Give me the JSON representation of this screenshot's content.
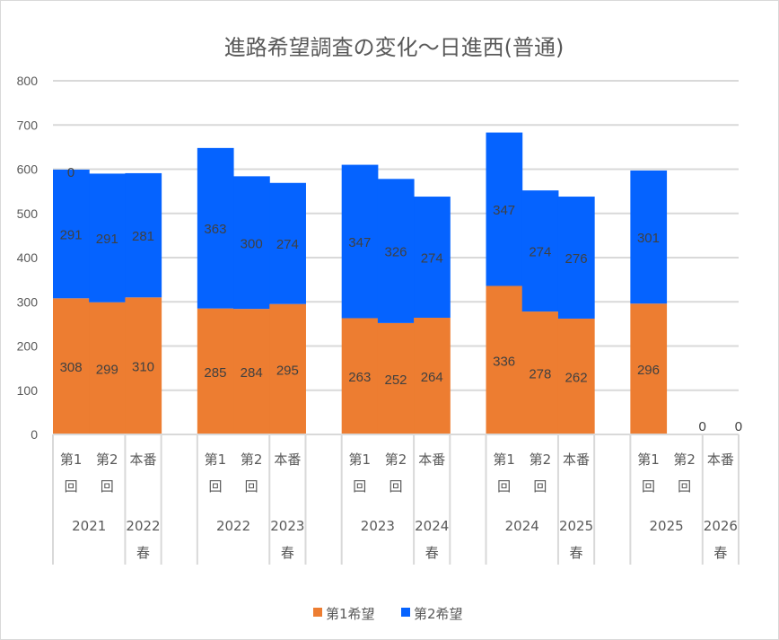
{
  "chart_data": {
    "type": "bar",
    "stacked": true,
    "title": "進路希望調査の変化～日進西(普通)",
    "xlabel": "",
    "ylabel": "",
    "ylim": [
      0,
      800
    ],
    "yticks": [
      "0",
      "100",
      "200",
      "300",
      "400",
      "500",
      "600",
      "700",
      "800"
    ],
    "grid": true,
    "legend_position": "bottom",
    "groups": [
      {
        "sub": [
          "第1\n回",
          "第2\n回",
          "本番"
        ],
        "years": [
          "2021",
          "2022\n春"
        ]
      },
      {
        "sub": [
          "第1\n回",
          "第2\n回",
          "本番"
        ],
        "years": [
          "2022",
          "2023\n春"
        ]
      },
      {
        "sub": [
          "第1\n回",
          "第2\n回",
          "本番"
        ],
        "years": [
          "2023",
          "2024\n春"
        ]
      },
      {
        "sub": [
          "第1\n回",
          "第2\n回",
          "本番"
        ],
        "years": [
          "2024",
          "2025\n春"
        ]
      },
      {
        "sub": [
          "第1\n回",
          "第2\n回",
          "本番"
        ],
        "years": [
          "2025",
          "2026\n春"
        ]
      }
    ],
    "series": [
      {
        "name": "第1希望",
        "color": "#ED7D31",
        "values": [
          308,
          299,
          310,
          285,
          284,
          295,
          263,
          252,
          264,
          336,
          278,
          262,
          296,
          0,
          0
        ],
        "labels": [
          "308",
          "299",
          "310",
          "285",
          "284",
          "295",
          "263",
          "252",
          "264",
          "336",
          "278",
          "262",
          "296",
          "0",
          "0"
        ]
      },
      {
        "name": "第2希望",
        "color": "#0563FF",
        "values": [
          291,
          291,
          281,
          363,
          300,
          274,
          347,
          326,
          274,
          347,
          274,
          276,
          301,
          0,
          0
        ],
        "labels": [
          "291",
          "291",
          "281",
          "363",
          "300",
          "274",
          "347",
          "326",
          "274",
          "347",
          "274",
          "276",
          "301",
          "",
          ""
        ]
      }
    ],
    "extra_labels": [
      {
        "bar_index": 0,
        "text": "0"
      }
    ]
  }
}
